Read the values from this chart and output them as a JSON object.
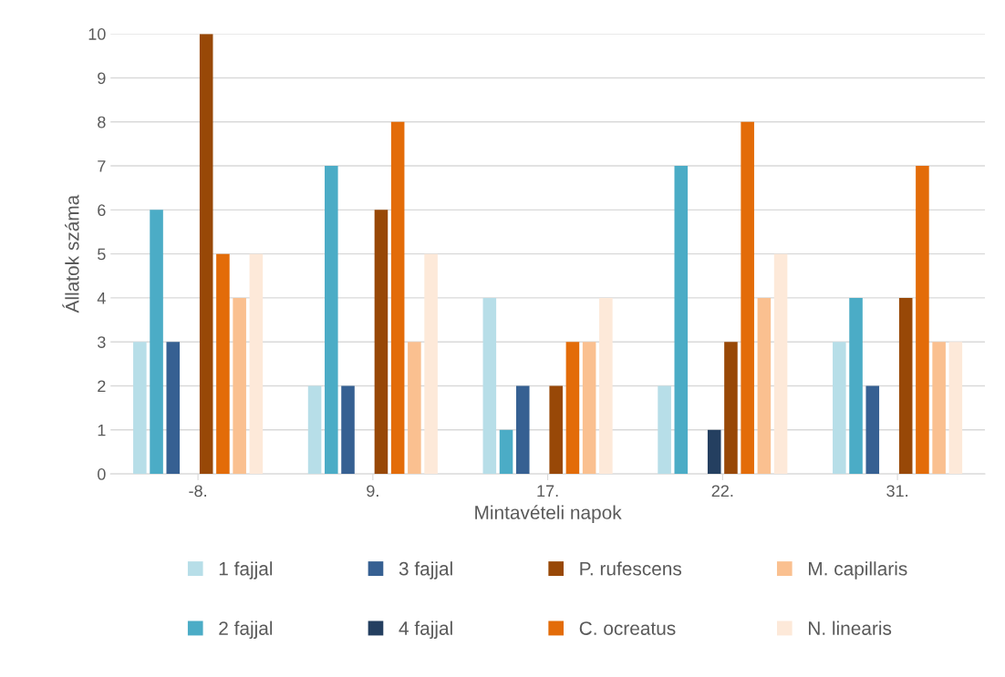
{
  "chart_data": {
    "type": "bar",
    "xlabel": "Mintavételi napok",
    "ylabel": "Állatok száma",
    "categories": [
      "-8.",
      "9.",
      "17.",
      "22.",
      "31."
    ],
    "series": [
      {
        "name": "1 fajjal",
        "color": "#b7dee8",
        "values": [
          3,
          2,
          4,
          2,
          3
        ]
      },
      {
        "name": "2 fajjal",
        "color": "#4bacc6",
        "values": [
          6,
          7,
          1,
          7,
          4
        ]
      },
      {
        "name": "3 fajjal",
        "color": "#366092",
        "values": [
          3,
          2,
          2,
          0,
          2
        ]
      },
      {
        "name": "4 fajjal",
        "color": "#243f60",
        "values": [
          0,
          0,
          0,
          1,
          0
        ]
      },
      {
        "name": "P. rufescens",
        "color": "#984807",
        "values": [
          10,
          6,
          2,
          3,
          4
        ]
      },
      {
        "name": "C. ocreatus",
        "color": "#e36c09",
        "values": [
          5,
          8,
          3,
          8,
          7
        ]
      },
      {
        "name": "M. capillaris",
        "color": "#fac090",
        "values": [
          4,
          3,
          3,
          4,
          3
        ]
      },
      {
        "name": "N. linearis",
        "color": "#fde9d9",
        "values": [
          5,
          5,
          4,
          5,
          3
        ]
      }
    ],
    "ylim": [
      0,
      10
    ],
    "yticks": [
      0,
      1,
      2,
      3,
      4,
      5,
      6,
      7,
      8,
      9,
      10
    ],
    "grid": "y",
    "legend": "bottom"
  }
}
